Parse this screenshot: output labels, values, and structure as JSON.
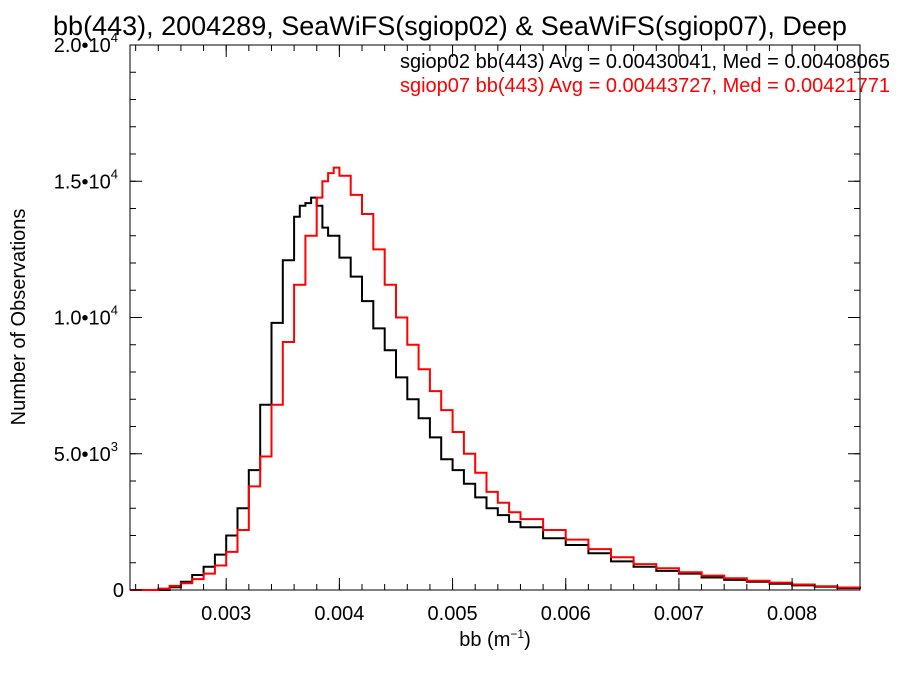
{
  "chart_data": {
    "type": "line",
    "title": "bb(443), 2004289, SeaWiFS(sgiop02) & SeaWiFS(sgiop07), Deep",
    "xlabel": "bb (m",
    "xlabel_sup": "−1",
    "xlabel_end": ")",
    "ylabel": "Number of Observations",
    "xlim": [
      0.00215,
      0.0086
    ],
    "ylim": [
      0,
      20000
    ],
    "x_ticks": [
      {
        "value": 0.003,
        "label": "0.003"
      },
      {
        "value": 0.004,
        "label": "0.004"
      },
      {
        "value": 0.005,
        "label": "0.005"
      },
      {
        "value": 0.006,
        "label": "0.006"
      },
      {
        "value": 0.007,
        "label": "0.007"
      },
      {
        "value": 0.008,
        "label": "0.008"
      }
    ],
    "y_ticks": [
      {
        "value": 0,
        "mant": "0",
        "exp": ""
      },
      {
        "value": 5000,
        "mant": "5.0•10",
        "exp": "3"
      },
      {
        "value": 10000,
        "mant": "1.0•10",
        "exp": "4"
      },
      {
        "value": 15000,
        "mant": "1.5•10",
        "exp": "4"
      },
      {
        "value": 20000,
        "mant": "2.0•10",
        "exp": "4"
      }
    ],
    "grid": false,
    "legend_position": "top-right",
    "legend": [
      {
        "text": "sgiop02 bb(443) Avg = 0.00430041, Med = 0.00408065",
        "color": "#000000"
      },
      {
        "text": "sgiop07 bb(443) Avg = 0.00443727, Med = 0.00421771",
        "color": "#ff0000"
      }
    ],
    "series": [
      {
        "color": "#000000",
        "x": [
          0.00215,
          0.0023,
          0.0025,
          0.0026,
          0.0027,
          0.0028,
          0.0029,
          0.003,
          0.0031,
          0.0032,
          0.0033,
          0.0034,
          0.0035,
          0.0036,
          0.00365,
          0.0037,
          0.00375,
          0.0038,
          0.00385,
          0.0039,
          0.004,
          0.0041,
          0.0042,
          0.0043,
          0.0044,
          0.0045,
          0.0046,
          0.0047,
          0.0048,
          0.0049,
          0.005,
          0.0051,
          0.0052,
          0.0053,
          0.0054,
          0.0055,
          0.0056,
          0.0058,
          0.006,
          0.0062,
          0.0064,
          0.0066,
          0.0068,
          0.007,
          0.0072,
          0.0074,
          0.0076,
          0.0078,
          0.008,
          0.0082,
          0.0084,
          0.0086
        ],
        "y": [
          0,
          0,
          100,
          300,
          550,
          850,
          1300,
          2000,
          3000,
          4400,
          6800,
          9800,
          12100,
          13700,
          14100,
          14200,
          14400,
          14100,
          13300,
          13000,
          12200,
          11500,
          10600,
          9600,
          8800,
          7800,
          7000,
          6300,
          5600,
          4800,
          4400,
          3900,
          3400,
          3000,
          2750,
          2500,
          2300,
          1900,
          1650,
          1350,
          1050,
          850,
          700,
          600,
          460,
          370,
          300,
          230,
          170,
          120,
          70,
          40
        ]
      },
      {
        "color": "#ff0000",
        "x": [
          0.00215,
          0.0023,
          0.0024,
          0.0025,
          0.0026,
          0.0027,
          0.0028,
          0.0029,
          0.003,
          0.0031,
          0.0032,
          0.0033,
          0.0034,
          0.0035,
          0.0036,
          0.0037,
          0.0038,
          0.00385,
          0.0039,
          0.00395,
          0.004,
          0.0041,
          0.0042,
          0.0043,
          0.0044,
          0.0045,
          0.0046,
          0.0047,
          0.0048,
          0.0049,
          0.005,
          0.0051,
          0.0052,
          0.0053,
          0.0054,
          0.0055,
          0.0056,
          0.0058,
          0.006,
          0.0062,
          0.0064,
          0.0066,
          0.0068,
          0.007,
          0.0072,
          0.0074,
          0.0076,
          0.0078,
          0.008,
          0.0082,
          0.0084,
          0.0086
        ],
        "y": [
          0,
          0,
          50,
          150,
          250,
          400,
          600,
          900,
          1400,
          2200,
          3800,
          4900,
          6800,
          9100,
          11200,
          13000,
          14400,
          15000,
          15300,
          15500,
          15200,
          14500,
          13800,
          12500,
          11200,
          10000,
          9000,
          8100,
          7300,
          6600,
          5800,
          5000,
          4300,
          3600,
          3200,
          2850,
          2600,
          2200,
          1850,
          1500,
          1200,
          950,
          800,
          650,
          530,
          430,
          340,
          270,
          200,
          140,
          90,
          50
        ]
      }
    ]
  }
}
